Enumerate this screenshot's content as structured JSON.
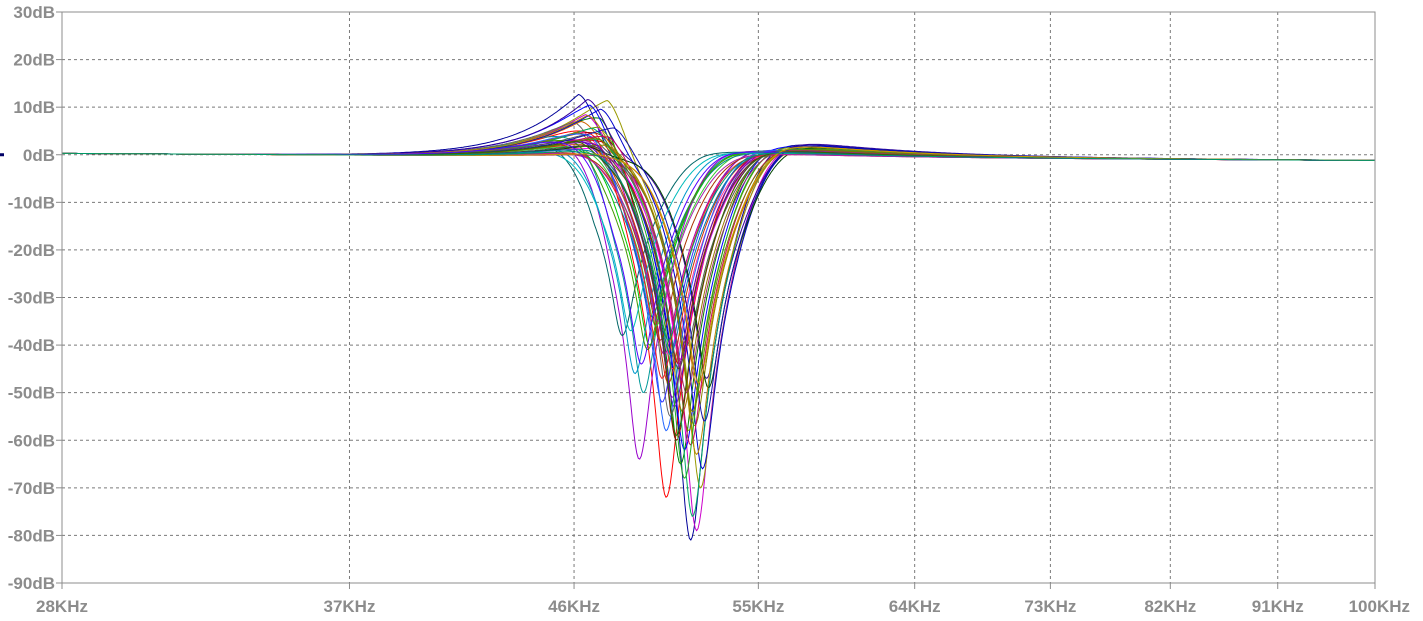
{
  "chart_data": {
    "type": "line",
    "title": "",
    "xlabel": "",
    "ylabel": "",
    "x_scale": "log",
    "xlim": [
      28,
      100
    ],
    "ylim": [
      -90,
      30
    ],
    "grid": true,
    "legend": "none",
    "x_ticks": [
      {
        "value": 28,
        "label": "28KHz"
      },
      {
        "value": 37,
        "label": "37KHz"
      },
      {
        "value": 46,
        "label": "46KHz"
      },
      {
        "value": 55,
        "label": "55KHz"
      },
      {
        "value": 64,
        "label": "64KHz"
      },
      {
        "value": 73,
        "label": "73KHz"
      },
      {
        "value": 82,
        "label": "82KHz"
      },
      {
        "value": 91,
        "label": "91KHz"
      },
      {
        "value": 100,
        "label": "100KHz"
      }
    ],
    "y_ticks": [
      {
        "value": 30,
        "label": "30dB"
      },
      {
        "value": 20,
        "label": "20dB"
      },
      {
        "value": 10,
        "label": "10dB"
      },
      {
        "value": 0,
        "label": "0dB"
      },
      {
        "value": -10,
        "label": "-10dB"
      },
      {
        "value": -20,
        "label": "-20dB"
      },
      {
        "value": -30,
        "label": "-30dB"
      },
      {
        "value": -40,
        "label": "-40dB"
      },
      {
        "value": -50,
        "label": "-50dB"
      },
      {
        "value": -60,
        "label": "-60dB"
      },
      {
        "value": -70,
        "label": "-70dB"
      },
      {
        "value": -80,
        "label": "-80dB"
      },
      {
        "value": -90,
        "label": "-90dB"
      }
    ],
    "series_template": {
      "description_fields": [
        "peak_khz",
        "peak_db",
        "notch_khz",
        "notch_db",
        "rebound_db"
      ],
      "count": 50
    },
    "series": [
      {
        "color": "#000099",
        "peak_khz": 46.2,
        "peak_db": 14.5,
        "notch_khz": 51.5,
        "notch_db": -81,
        "rebound_db": 4.5
      },
      {
        "color": "#ff0000",
        "peak_khz": 47.0,
        "peak_db": 11.0,
        "notch_khz": 50.3,
        "notch_db": -72,
        "rebound_db": 2.5
      },
      {
        "color": "#008000",
        "peak_khz": 47.2,
        "peak_db": 13.0,
        "notch_khz": 51.0,
        "notch_db": -65,
        "rebound_db": 3.0
      },
      {
        "color": "#cc00cc",
        "peak_khz": 46.5,
        "peak_db": 10.0,
        "notch_khz": 51.8,
        "notch_db": -79,
        "rebound_db": 4.0
      },
      {
        "color": "#999900",
        "peak_khz": 47.5,
        "peak_db": 15.0,
        "notch_khz": 52.0,
        "notch_db": -70,
        "rebound_db": 3.5
      },
      {
        "color": "#009999",
        "peak_khz": 47.0,
        "peak_db": 12.5,
        "notch_khz": 49.2,
        "notch_db": -50,
        "rebound_db": 2.0
      },
      {
        "color": "#666666",
        "peak_khz": 46.0,
        "peak_db": 9.0,
        "notch_khz": 50.5,
        "notch_db": -55,
        "rebound_db": 1.5
      },
      {
        "color": "#0000ff",
        "peak_khz": 46.7,
        "peak_db": 13.5,
        "notch_khz": 51.2,
        "notch_db": -62,
        "rebound_db": 3.8
      },
      {
        "color": "#990000",
        "peak_khz": 47.8,
        "peak_db": 11.5,
        "notch_khz": 50.8,
        "notch_db": -60,
        "rebound_db": 2.8
      },
      {
        "color": "#00cc00",
        "peak_khz": 48.5,
        "peak_db": 11.0,
        "notch_khz": 49.5,
        "notch_db": -40,
        "rebound_db": 2.2
      },
      {
        "color": "#9900cc",
        "peak_khz": 47.3,
        "peak_db": 12.0,
        "notch_khz": 49.0,
        "notch_db": -64,
        "rebound_db": 2.4
      },
      {
        "color": "#cc6600",
        "peak_khz": 46.3,
        "peak_db": 8.0,
        "notch_khz": 51.9,
        "notch_db": -50,
        "rebound_db": 3.2
      },
      {
        "color": "#006666",
        "peak_khz": 46.9,
        "peak_db": 10.5,
        "notch_khz": 48.2,
        "notch_db": -38,
        "rebound_db": 1.8
      },
      {
        "color": "#3333ff",
        "peak_khz": 47.6,
        "peak_db": 9.5,
        "notch_khz": 50.1,
        "notch_db": -52,
        "rebound_db": 2.6
      },
      {
        "color": "#ff3399",
        "peak_khz": 46.4,
        "peak_db": 7.0,
        "notch_khz": 50.6,
        "notch_db": -45,
        "rebound_db": 1.6
      },
      {
        "color": "#669900",
        "peak_khz": 47.1,
        "peak_db": 8.5,
        "notch_khz": 51.4,
        "notch_db": -58,
        "rebound_db": 3.6
      },
      {
        "color": "#330099",
        "peak_khz": 46.6,
        "peak_db": 12.8,
        "notch_khz": 52.3,
        "notch_db": -47,
        "rebound_db": 4.2
      },
      {
        "color": "#cc0000",
        "peak_khz": 47.4,
        "peak_db": 6.5,
        "notch_khz": 50.9,
        "notch_db": -44,
        "rebound_db": 2.0
      },
      {
        "color": "#00aa66",
        "peak_khz": 46.8,
        "peak_db": 7.5,
        "notch_khz": 51.6,
        "notch_db": -76,
        "rebound_db": 3.4
      },
      {
        "color": "#aa00aa",
        "peak_khz": 47.9,
        "peak_db": 10.2,
        "notch_khz": 50.2,
        "notch_db": -42,
        "rebound_db": 2.3
      },
      {
        "color": "#997700",
        "peak_khz": 46.1,
        "peak_db": 6.0,
        "notch_khz": 51.1,
        "notch_db": -54,
        "rebound_db": 2.9
      },
      {
        "color": "#0099cc",
        "peak_khz": 47.7,
        "peak_db": 9.0,
        "notch_khz": 48.8,
        "notch_db": -46,
        "rebound_db": 1.9
      },
      {
        "color": "#555555",
        "peak_khz": 46.5,
        "peak_db": 5.5,
        "notch_khz": 51.3,
        "notch_db": -40,
        "rebound_db": 2.7
      },
      {
        "color": "#0000cc",
        "peak_khz": 47.2,
        "peak_db": 11.8,
        "notch_khz": 52.1,
        "notch_db": -66,
        "rebound_db": 3.9
      },
      {
        "color": "#cc3300",
        "peak_khz": 46.9,
        "peak_db": 5.0,
        "notch_khz": 50.4,
        "notch_db": -48,
        "rebound_db": 1.7
      },
      {
        "color": "#33cc33",
        "peak_khz": 48.2,
        "peak_db": 7.8,
        "notch_khz": 49.8,
        "notch_db": -36,
        "rebound_db": 2.1
      },
      {
        "color": "#6600cc",
        "peak_khz": 46.3,
        "peak_db": 4.5,
        "notch_khz": 50.7,
        "notch_db": -53,
        "rebound_db": 2.5
      },
      {
        "color": "#888800",
        "peak_khz": 47.5,
        "peak_db": 4.0,
        "notch_khz": 51.7,
        "notch_db": -57,
        "rebound_db": 3.1
      },
      {
        "color": "#008888",
        "peak_khz": 46.7,
        "peak_db": 3.5,
        "notch_khz": 49.6,
        "notch_db": -34,
        "rebound_db": 1.5
      },
      {
        "color": "#ff00ff",
        "peak_khz": 47.0,
        "peak_db": 3.0,
        "notch_khz": 51.0,
        "notch_db": -43,
        "rebound_db": 2.2
      },
      {
        "color": "#004400",
        "peak_khz": 46.4,
        "peak_db": 2.5,
        "notch_khz": 52.4,
        "notch_db": -49,
        "rebound_db": 3.3
      },
      {
        "color": "#aa3300",
        "peak_khz": 47.3,
        "peak_db": 2.0,
        "notch_khz": 50.0,
        "notch_db": -39,
        "rebound_db": 1.4
      },
      {
        "color": "#2266ff",
        "peak_khz": 46.8,
        "peak_db": 8.8,
        "notch_khz": 50.3,
        "notch_db": -58,
        "rebound_db": 2.6
      },
      {
        "color": "#cc0066",
        "peak_khz": 47.6,
        "peak_db": 7.2,
        "notch_khz": 51.5,
        "notch_db": -61,
        "rebound_db": 3.0
      },
      {
        "color": "#449900",
        "peak_khz": 46.2,
        "peak_db": 6.8,
        "notch_khz": 49.4,
        "notch_db": -41,
        "rebound_db": 1.8
      },
      {
        "color": "#7700aa",
        "peak_khz": 47.1,
        "peak_db": 5.8,
        "notch_khz": 50.6,
        "notch_db": -51,
        "rebound_db": 2.4
      },
      {
        "color": "#bb8800",
        "peak_khz": 46.6,
        "peak_db": 9.8,
        "notch_khz": 51.8,
        "notch_db": -63,
        "rebound_db": 3.7
      },
      {
        "color": "#00bbbb",
        "peak_khz": 47.4,
        "peak_db": 4.8,
        "notch_khz": 48.6,
        "notch_db": -37,
        "rebound_db": 1.6
      },
      {
        "color": "#444444",
        "peak_khz": 46.9,
        "peak_db": 3.8,
        "notch_khz": 50.9,
        "notch_db": -45,
        "rebound_db": 2.0
      },
      {
        "color": "#1111aa",
        "peak_khz": 47.8,
        "peak_db": 8.2,
        "notch_khz": 52.2,
        "notch_db": -56,
        "rebound_db": 4.1
      },
      {
        "color": "#ee2222",
        "peak_khz": 46.3,
        "peak_db": 1.8,
        "notch_khz": 50.1,
        "notch_db": -47,
        "rebound_db": 1.3
      },
      {
        "color": "#22aa22",
        "peak_khz": 47.2,
        "peak_db": 6.2,
        "notch_khz": 51.2,
        "notch_db": -68,
        "rebound_db": 3.2
      },
      {
        "color": "#aa22aa",
        "peak_khz": 46.5,
        "peak_db": 1.5,
        "notch_khz": 49.9,
        "notch_db": -35,
        "rebound_db": 1.2
      },
      {
        "color": "#777700",
        "peak_khz": 47.0,
        "peak_db": 5.2,
        "notch_khz": 51.6,
        "notch_db": -54,
        "rebound_db": 2.8
      },
      {
        "color": "#0077aa",
        "peak_khz": 46.7,
        "peak_db": 2.8,
        "notch_khz": 50.5,
        "notch_db": -42,
        "rebound_db": 1.9
      },
      {
        "color": "#993366",
        "peak_khz": 47.5,
        "peak_db": 1.2,
        "notch_khz": 51.3,
        "notch_db": -50,
        "rebound_db": 2.5
      },
      {
        "color": "#336600",
        "peak_khz": 46.1,
        "peak_db": 4.2,
        "notch_khz": 50.8,
        "notch_db": -59,
        "rebound_db": 2.3
      },
      {
        "color": "#5500ff",
        "peak_khz": 47.3,
        "peak_db": 10.8,
        "notch_khz": 49.1,
        "notch_db": -44,
        "rebound_db": 2.0
      },
      {
        "color": "#cc9900",
        "peak_khz": 46.8,
        "peak_db": 1.0,
        "notch_khz": 51.9,
        "notch_db": -48,
        "rebound_db": 3.5
      },
      {
        "color": "#009966",
        "peak_khz": 47.7,
        "peak_db": 3.2,
        "notch_khz": 50.4,
        "notch_db": -39,
        "rebound_db": 1.7
      }
    ]
  }
}
